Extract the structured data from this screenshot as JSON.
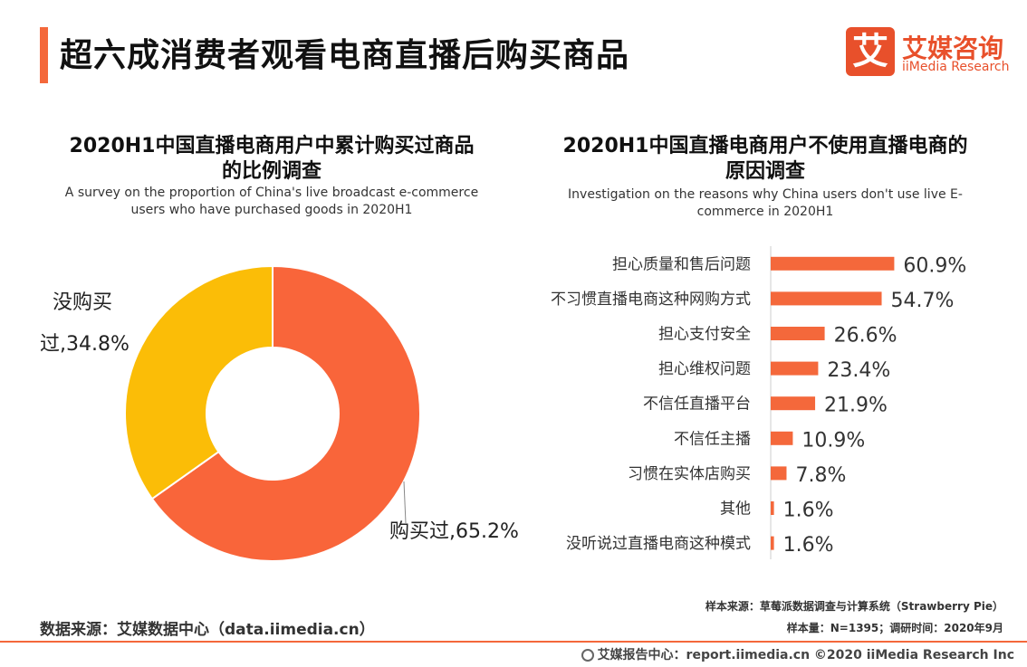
{
  "header": {
    "title": "超六成消费者观看电商直播后购买商品"
  },
  "logo": {
    "mark": "艾",
    "cn": "艾媒咨询",
    "en": "iiMedia Research"
  },
  "colors": {
    "accent": "#f4683b",
    "donut_buy": "#f9653a",
    "donut_no": "#fbbd07",
    "bar": "#f4683b"
  },
  "chart_data": [
    {
      "type": "pie",
      "title": "2020H1中国直播电商用户中累计购买过商品的比例调查",
      "title_lines": [
        "2020H1中国直播电商用户中累计购买过商品",
        "的比例调查"
      ],
      "subtitle": "A survey on the proportion of China's live broadcast e-commerce users who have purchased goods  in 2020H1",
      "subtitle_lines": [
        "A survey on the proportion of China's live broadcast e-commerce",
        "users who have purchased goods  in 2020H1"
      ],
      "categories": [
        "购买过",
        "没购买过"
      ],
      "values": [
        65.2,
        34.8
      ],
      "labels": [
        [
          "购买过,65.2%"
        ],
        [
          "没购买",
          "过,34.8%"
        ]
      ]
    },
    {
      "type": "bar",
      "orientation": "horizontal",
      "title": "2020H1中国直播电商用户不使用直播电商的原因调查",
      "title_lines": [
        "2020H1中国直播电商用户不使用直播电商的",
        "原因调查"
      ],
      "subtitle": "Investigation on the reasons why China users don't use live E-commerce in 2020H1",
      "subtitle_lines": [
        "Investigation on the reasons why China users don't use live E-",
        "commerce in 2020H1"
      ],
      "categories": [
        "担心质量和售后问题",
        "不习惯直播电商这种网购方式",
        "担心支付安全",
        "担心维权问题",
        "不信任直播平台",
        "不信任主播",
        "习惯在实体店购买",
        "其他",
        "没听说过直播电商这种模式"
      ],
      "values": [
        60.9,
        54.7,
        26.6,
        23.4,
        21.9,
        10.9,
        7.8,
        1.6,
        1.6
      ],
      "value_labels": [
        "60.9%",
        "54.7%",
        "26.6%",
        "23.4%",
        "21.9%",
        "10.9%",
        "7.8%",
        "1.6%",
        "1.6%"
      ]
    }
  ],
  "footer": {
    "source": "数据来源：艾媒数据中心（data.iimedia.cn）",
    "sample_source": "样本来源：草莓派数据调查与计算系统（Strawberry Pie）",
    "sample_size": "样本量：N=1395；调研时间：2020年9月",
    "copyright": "艾媒报告中心：report.iimedia.cn  ©2020  iiMedia Research  Inc"
  }
}
